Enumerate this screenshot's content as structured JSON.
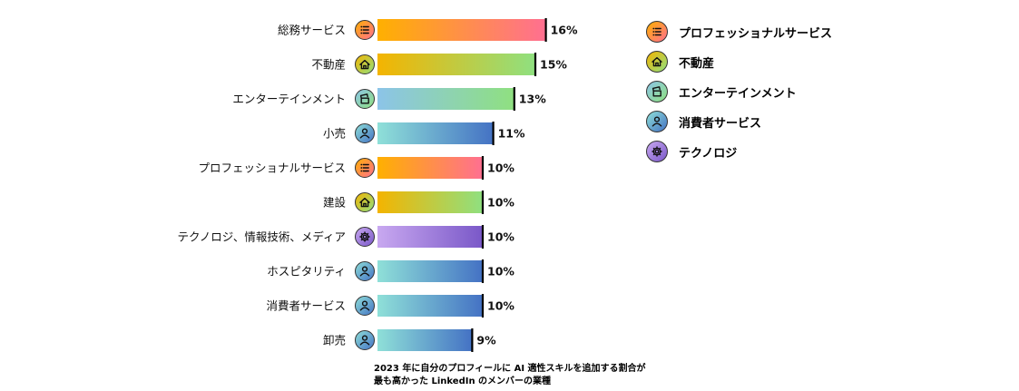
{
  "chart_data": {
    "type": "bar",
    "orientation": "horizontal",
    "categories": [
      "総務サービス",
      "不動産",
      "エンターテインメント",
      "小売",
      "プロフェッショナルサービス",
      "建設",
      "テクノロジ、情報技術、メディア",
      "ホスピタリティ",
      "消費者サービス",
      "卸売"
    ],
    "values": [
      16,
      15,
      13,
      11,
      10,
      10,
      10,
      10,
      10,
      9
    ],
    "value_labels": [
      "16%",
      "15%",
      "13%",
      "11%",
      "10%",
      "10%",
      "10%",
      "10%",
      "10%",
      "9%"
    ],
    "groups": [
      "professional",
      "real_estate",
      "entertainment",
      "consumer",
      "professional",
      "real_estate",
      "technology",
      "consumer",
      "consumer",
      "consumer"
    ],
    "unit": "%",
    "legend_position": "right"
  },
  "groups": {
    "professional": {
      "label": "プロフェッショナルサービス",
      "icon": "list-icon",
      "gradient": [
        "#FFB000",
        "#FF6F91"
      ],
      "icon_fill": [
        "#FFB000",
        "#FF6F91"
      ]
    },
    "real_estate": {
      "label": "不動産",
      "icon": "home-icon",
      "gradient": [
        "#F4B400",
        "#8FE080"
      ],
      "icon_fill": [
        "#F4B400",
        "#8FE080"
      ]
    },
    "entertainment": {
      "label": "エンターテインメント",
      "icon": "clapperboard-icon",
      "gradient": [
        "#8CC4E8",
        "#8FE080"
      ],
      "icon_fill": [
        "#8CC4E8",
        "#8FE080"
      ]
    },
    "consumer": {
      "label": "消費者サービス",
      "icon": "person-icon",
      "gradient": [
        "#8FE0D8",
        "#4472C4"
      ],
      "icon_fill": [
        "#8FE0D8",
        "#4472C4"
      ]
    },
    "technology": {
      "label": "テクノロジ",
      "icon": "gear-icon",
      "gradient": [
        "#C8A8F0",
        "#7A58C8"
      ],
      "icon_fill": [
        "#C8A8F0",
        "#7A58C8"
      ]
    }
  },
  "legend_order": [
    "professional",
    "real_estate",
    "entertainment",
    "consumer",
    "technology"
  ],
  "caption": {
    "line1": "2023 年に自分のプロフィールに AI 適性スキルを追加する割合が",
    "line2": "最も高かった LinkedIn のメンバーの業種"
  }
}
